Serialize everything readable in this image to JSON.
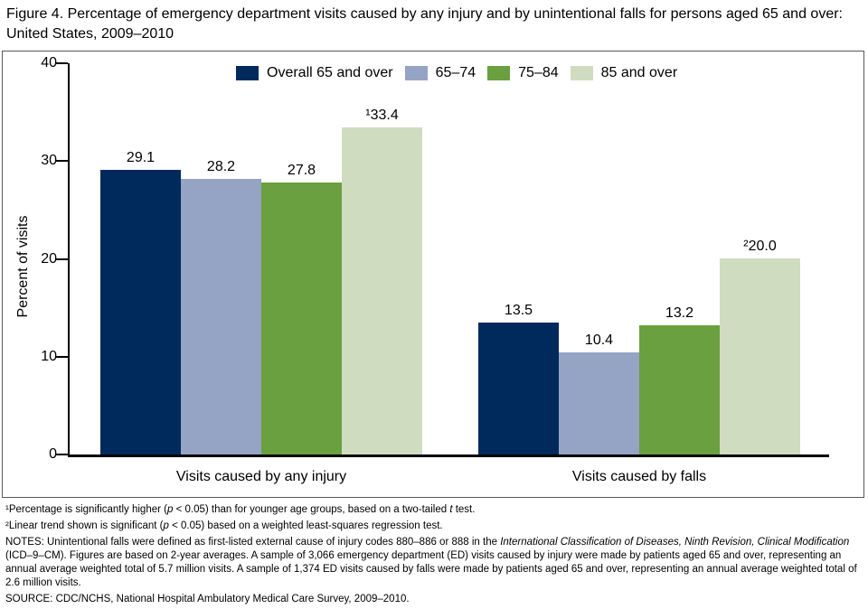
{
  "figure": {
    "title": "Figure 4. Percentage of emergency department visits caused by any injury and by unintentional falls for persons aged 65 and over: United States, 2009–2010"
  },
  "chart_data": {
    "type": "bar",
    "title": "",
    "categories": [
      "Visits caused by any injury",
      "Visits caused by falls"
    ],
    "series": [
      {
        "name": "Overall 65 and over",
        "color": "#002a5c",
        "values": [
          29.1,
          13.5
        ],
        "bar_labels": [
          "29.1",
          "13.5"
        ]
      },
      {
        "name": "65–74",
        "color": "#95a3c4",
        "values": [
          28.2,
          10.4
        ],
        "bar_labels": [
          "28.2",
          "10.4"
        ]
      },
      {
        "name": "75–84",
        "color": "#6aa03f",
        "values": [
          27.8,
          13.2
        ],
        "bar_labels": [
          "27.8",
          "13.2"
        ]
      },
      {
        "name": "85 and over",
        "color": "#d0dcc0",
        "values": [
          33.4,
          20.0
        ],
        "bar_labels": [
          "¹33.4",
          "²20.0"
        ]
      }
    ],
    "xlabel": "",
    "ylabel": "Percent of visits",
    "ylim": [
      0,
      40
    ],
    "yticks": [
      0,
      10,
      20,
      30,
      40
    ],
    "grid": false,
    "legend_position": "top"
  },
  "footnotes": [
    {
      "runs": [
        {
          "t": "¹Percentage is significantly higher ("
        },
        {
          "t": "p",
          "i": true
        },
        {
          "t": " < 0.05) than for younger age groups, based on a two-tailed "
        },
        {
          "t": "t",
          "i": true
        },
        {
          "t": " test."
        }
      ]
    },
    {
      "runs": [
        {
          "t": "²Linear trend shown is significant ("
        },
        {
          "t": "p",
          "i": true
        },
        {
          "t": " < 0.05) based on a weighted least-squares regression test."
        }
      ]
    },
    {
      "runs": [
        {
          "t": "NOTES: Unintentional falls were defined as first-listed external cause of injury codes 880–886 or 888 in the "
        },
        {
          "t": "International Classification of Diseases, Ninth Revision, Clinical Modification",
          "i": true
        },
        {
          "t": " (ICD–9–CM). Figures are based on 2-year averages. A sample of 3,066 emergency department (ED) visits caused by injury were made by patients aged 65 and over, representing an annual average weighted total of 5.7 million visits.  A sample of 1,374 ED visits caused by falls were made by patients aged 65 and over, representing an annual average weighted total of 2.6 million visits."
        }
      ]
    },
    {
      "runs": [
        {
          "t": "SOURCE: CDC/NCHS, National Hospital Ambulatory Medical Care Survey, 2009–2010."
        }
      ]
    }
  ],
  "colors": {
    "axis": "#000000",
    "frame_border": "#595959",
    "background": "#ffffff"
  }
}
